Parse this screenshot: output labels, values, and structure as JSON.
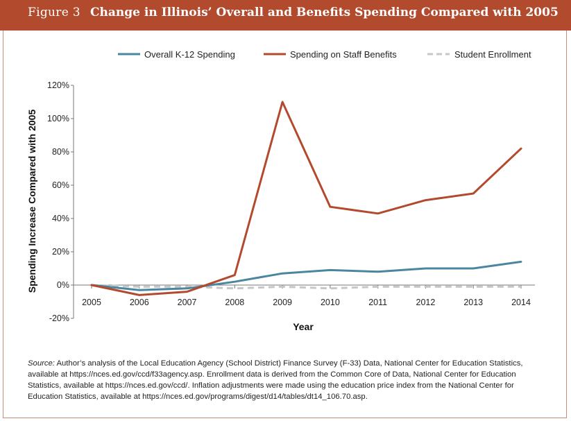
{
  "header": {
    "figure_label": "Figure 3",
    "title": "Change in Illinois’ Overall and Benefits Spending Compared with 2005",
    "background_color": "#b24a2e"
  },
  "chart_data": {
    "type": "line",
    "xlabel": "Year",
    "ylabel": "Spending Increase Compared with 2005",
    "x": [
      2005,
      2006,
      2007,
      2008,
      2009,
      2010,
      2011,
      2012,
      2013,
      2014
    ],
    "x_tick_labels": [
      "2005",
      "2006",
      "2007",
      "2008",
      "2009",
      "2010",
      "2011",
      "2012",
      "2013",
      "2014"
    ],
    "ylim": [
      -20,
      120
    ],
    "y_ticks": [
      -20,
      0,
      20,
      40,
      60,
      80,
      100,
      120
    ],
    "y_tick_labels": [
      "-20%",
      "0%",
      "20%",
      "40%",
      "60%",
      "80%",
      "100%",
      "120%"
    ],
    "grid": false,
    "legend_position": "top",
    "series": [
      {
        "name": "Overall K-12 Spending",
        "color": "#4a86a0",
        "style": "solid",
        "values": [
          0,
          -3,
          -2,
          2,
          7,
          9,
          8,
          10,
          10,
          14
        ]
      },
      {
        "name": "Spending on Staff Benefits",
        "color": "#b24a2e",
        "style": "solid",
        "values": [
          0,
          -6,
          -4,
          6,
          110,
          47,
          43,
          51,
          55,
          82
        ]
      },
      {
        "name": "Student Enrollment",
        "color": "#c7c7c7",
        "style": "dashed",
        "values": [
          0,
          -1,
          -1,
          -2,
          -1,
          -2,
          -1,
          -1,
          -1,
          -1
        ]
      }
    ]
  },
  "source": {
    "label": "Source:",
    "text": "Author’s analysis of the Local Education Agency (School District) Finance Survey (F-33) Data, National Center for Education Statistics, available at https://nces.ed.gov/ccd/f33agency.asp. Enrollment data is derived from the Common Core of Data, National Center for Education Statistics, available at https://nces.ed.gov/ccd/. Inflation adjustments were made using the education price index from the National Center for Education Statistics, available at https://nces.ed.gov/programs/digest/d14/tables/dt14_106.70.asp."
  }
}
